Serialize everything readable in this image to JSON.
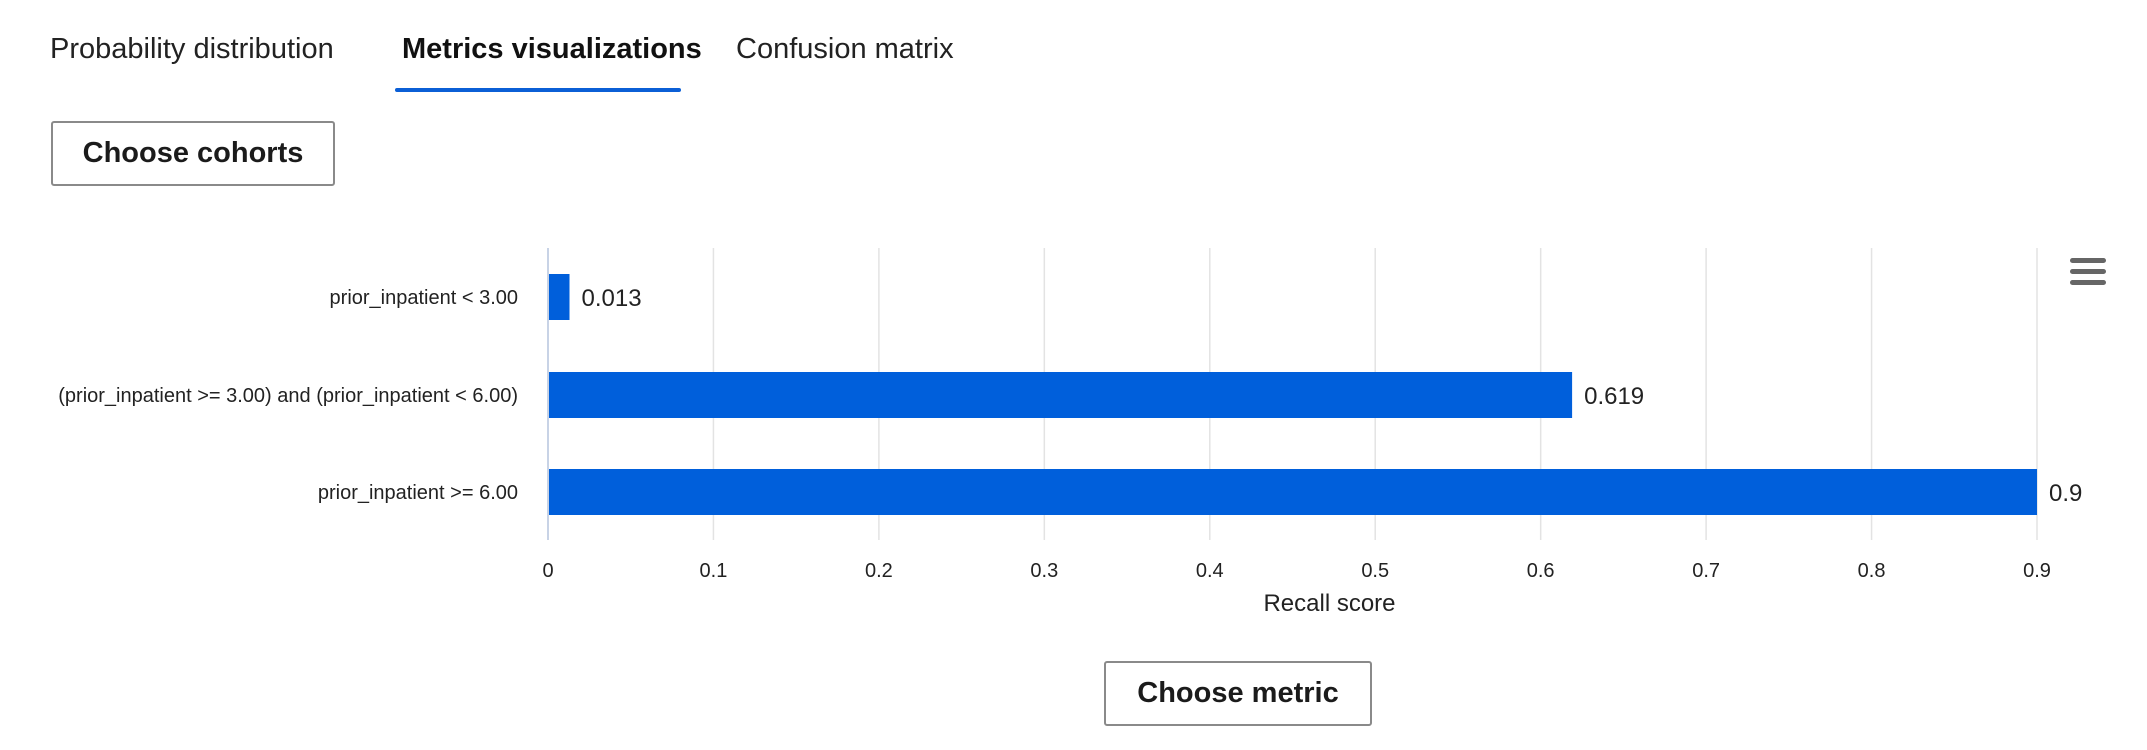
{
  "tabs": [
    {
      "label": "Probability distribution",
      "active": false
    },
    {
      "label": "Metrics visualizations",
      "active": true
    },
    {
      "label": "Confusion matrix",
      "active": false
    }
  ],
  "buttons": {
    "choose_cohorts": "Choose cohorts",
    "choose_metric": "Choose metric"
  },
  "icons": {
    "chart_menu": "hamburger-menu-icon"
  },
  "colors": {
    "accent": "#0b5fd6",
    "bar": "#005fdb",
    "grid": "#e3e3e3"
  },
  "chart_data": {
    "type": "bar",
    "orientation": "horizontal",
    "categories": [
      "prior_inpatient < 3.00",
      "(prior_inpatient >= 3.00) and (prior_inpatient < 6.00)",
      "prior_inpatient >= 6.00"
    ],
    "values": [
      0.013,
      0.619,
      0.9
    ],
    "value_labels": [
      "0.013",
      "0.619",
      "0.9"
    ],
    "xlabel": "Recall score",
    "ylabel": "",
    "xlim": [
      0,
      0.9
    ],
    "xticks": [
      "0",
      "0.1",
      "0.2",
      "0.3",
      "0.4",
      "0.5",
      "0.6",
      "0.7",
      "0.8",
      "0.9"
    ],
    "grid": true,
    "legend": false
  }
}
